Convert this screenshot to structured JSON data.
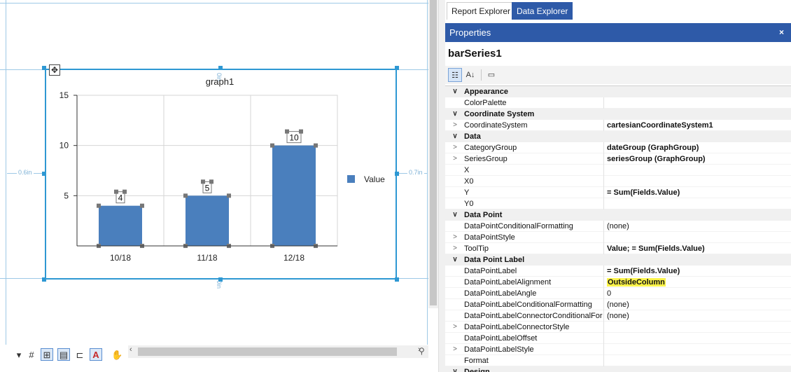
{
  "designer": {
    "guide_left": "0.6in",
    "guide_right": "0.7in",
    "guide_top": "0in",
    "guide_bottom": "0in"
  },
  "chart_data": {
    "type": "bar",
    "title": "graph1",
    "categories": [
      "10/18",
      "11/18",
      "12/18"
    ],
    "series": [
      {
        "name": "Value",
        "values": [
          4,
          5,
          10
        ]
      }
    ],
    "data_labels": [
      "4",
      "5",
      "10"
    ],
    "ylim": [
      0,
      15
    ],
    "yticks": [
      "5",
      "10",
      "15"
    ],
    "grid": true,
    "legend": "right",
    "colors": {
      "bar": "#4a7fbd"
    }
  },
  "tabs": [
    {
      "label": "Report Explorer"
    },
    {
      "label": "Data Explorer"
    }
  ],
  "properties": {
    "title": "Properties",
    "close": "×",
    "object_name": "barSeries1",
    "rows": [
      {
        "type": "cat",
        "tw": "∨",
        "name": "Appearance",
        "value": ""
      },
      {
        "type": "prop",
        "tw": "",
        "name": "ColorPalette",
        "value": ""
      },
      {
        "type": "cat",
        "tw": "∨",
        "name": "Coordinate System",
        "value": ""
      },
      {
        "type": "prop",
        "tw": ">",
        "name": "CoordinateSystem",
        "value": "cartesianCoordinateSystem1",
        "bold": true
      },
      {
        "type": "cat",
        "tw": "∨",
        "name": "Data",
        "value": ""
      },
      {
        "type": "prop",
        "tw": ">",
        "name": "CategoryGroup",
        "value": "dateGroup (GraphGroup)",
        "bold": true
      },
      {
        "type": "prop",
        "tw": ">",
        "name": "SeriesGroup",
        "value": "seriesGroup (GraphGroup)",
        "bold": true
      },
      {
        "type": "prop",
        "tw": "",
        "name": "X",
        "value": ""
      },
      {
        "type": "prop",
        "tw": "",
        "name": "X0",
        "value": ""
      },
      {
        "type": "prop",
        "tw": "",
        "name": "Y",
        "value": "= Sum(Fields.Value)",
        "bold": true
      },
      {
        "type": "prop",
        "tw": "",
        "name": "Y0",
        "value": ""
      },
      {
        "type": "cat",
        "tw": "∨",
        "name": "Data Point",
        "value": ""
      },
      {
        "type": "prop",
        "tw": "",
        "name": "DataPointConditionalFormatting",
        "value": "(none)"
      },
      {
        "type": "prop",
        "tw": ">",
        "name": "DataPointStyle",
        "value": ""
      },
      {
        "type": "prop",
        "tw": ">",
        "name": "ToolTip",
        "value": "Value; = Sum(Fields.Value)",
        "bold": true
      },
      {
        "type": "cat",
        "tw": "∨",
        "name": "Data Point Label",
        "value": ""
      },
      {
        "type": "prop",
        "tw": "",
        "name": "DataPointLabel",
        "value": "= Sum(Fields.Value)",
        "bold": true
      },
      {
        "type": "prop",
        "tw": "",
        "name": "DataPointLabelAlignment",
        "value": "OutsideColumn",
        "bold": true,
        "highlight": true
      },
      {
        "type": "prop",
        "tw": "",
        "name": "DataPointLabelAngle",
        "value": "0"
      },
      {
        "type": "prop",
        "tw": "",
        "name": "DataPointLabelConditionalFormatting",
        "value": "(none)"
      },
      {
        "type": "prop",
        "tw": "",
        "name": "DataPointLabelConnectorConditionalForm",
        "value": "(none)"
      },
      {
        "type": "prop",
        "tw": ">",
        "name": "DataPointLabelConnectorStyle",
        "value": ""
      },
      {
        "type": "prop",
        "tw": "",
        "name": "DataPointLabelOffset",
        "value": ""
      },
      {
        "type": "prop",
        "tw": ">",
        "name": "DataPointLabelStyle",
        "value": ""
      },
      {
        "type": "prop",
        "tw": "",
        "name": "Format",
        "value": ""
      },
      {
        "type": "cat",
        "tw": "∨",
        "name": "Design",
        "value": ""
      }
    ]
  }
}
